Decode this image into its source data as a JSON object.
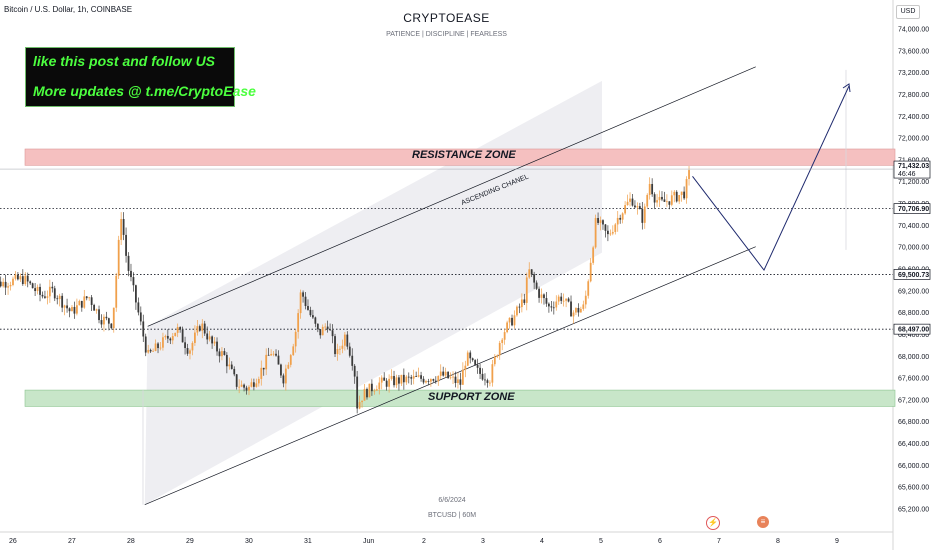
{
  "header": {
    "symbol": "Bitcoin / U.S. Dollar, 1h, COINBASE",
    "currency_button": "USD"
  },
  "watermark": {
    "title": "CRYPTOEASE",
    "subtitle": "PATIENCE  |  DISCIPLINE  |  FEARLESS"
  },
  "promo": {
    "line1": "like this post and follow US",
    "line2": "More updates @ t.me/CryptoEase",
    "text_color": "#4cff3f",
    "background": "#0a0a0a"
  },
  "footer": {
    "date": "6/6/2024",
    "ticker": "BTCUSD | 60M"
  },
  "icons": [
    "flash-icon",
    "flag-icon"
  ],
  "chart_data": {
    "type": "candlestick",
    "interval": "1h",
    "symbol": "BTCUSD",
    "title": "Bitcoin / U.S. Dollar, 1h, COINBASE",
    "x_axis": {
      "ticks": [
        "26",
        "27",
        "28",
        "29",
        "30",
        "31",
        "Jun",
        "2",
        "3",
        "4",
        "5",
        "6",
        "7",
        "8",
        "9"
      ],
      "unit": "days"
    },
    "y_axis": {
      "range": [
        65100,
        74250
      ],
      "ticks": [
        "65,200.00",
        "65,600.00",
        "66,000.00",
        "66,400.00",
        "66,800.00",
        "67,200.00",
        "67,600.00",
        "68,000.00",
        "68,400.00",
        "68,800.00",
        "69,200.00",
        "69,600.00",
        "70,000.00",
        "70,400.00",
        "70,800.00",
        "71,200.00",
        "71,600.00",
        "72,000.00",
        "72,400.00",
        "72,800.00",
        "73,200.00",
        "73,600.00",
        "74,000.00"
      ],
      "side": "right"
    },
    "colors": {
      "up": "#f0a04b",
      "down": "#3a3a3a",
      "axis_text": "#131722",
      "grid": "none"
    },
    "price_close_path": [
      [
        25.6,
        69300
      ],
      [
        26.2,
        69420
      ],
      [
        26.5,
        69100
      ],
      [
        26.7,
        69200
      ],
      [
        27.0,
        68800
      ],
      [
        27.3,
        69100
      ],
      [
        27.5,
        68700
      ],
      [
        27.7,
        68600
      ],
      [
        27.85,
        70600
      ],
      [
        27.95,
        69700
      ],
      [
        28.1,
        69000
      ],
      [
        28.3,
        68000
      ],
      [
        28.5,
        68200
      ],
      [
        28.8,
        68500
      ],
      [
        29.0,
        68100
      ],
      [
        29.2,
        68600
      ],
      [
        29.4,
        68200
      ],
      [
        29.6,
        68000
      ],
      [
        29.8,
        67500
      ],
      [
        30.0,
        67400
      ],
      [
        30.2,
        67700
      ],
      [
        30.4,
        68100
      ],
      [
        30.6,
        67600
      ],
      [
        30.8,
        68400
      ],
      [
        30.9,
        69200
      ],
      [
        31.0,
        68900
      ],
      [
        31.2,
        68400
      ],
      [
        31.35,
        68600
      ],
      [
        31.5,
        68000
      ],
      [
        31.65,
        68400
      ],
      [
        31.8,
        67800
      ],
      [
        31.85,
        67100
      ],
      [
        31.95,
        67300
      ],
      [
        32.2,
        67500
      ],
      [
        32.6,
        67560
      ],
      [
        33.0,
        67600
      ],
      [
        33.3,
        67650
      ],
      [
        33.6,
        67500
      ],
      [
        33.7,
        68000
      ],
      [
        33.9,
        67700
      ],
      [
        34.1,
        67600
      ],
      [
        34.3,
        68400
      ],
      [
        34.5,
        68700
      ],
      [
        34.7,
        69100
      ],
      [
        34.75,
        69600
      ],
      [
        34.9,
        69200
      ],
      [
        35.1,
        68900
      ],
      [
        35.3,
        69100
      ],
      [
        35.5,
        68800
      ],
      [
        35.7,
        68900
      ],
      [
        35.8,
        69700
      ],
      [
        35.9,
        70500
      ],
      [
        36.1,
        70200
      ],
      [
        36.3,
        70600
      ],
      [
        36.5,
        70900
      ],
      [
        36.7,
        70500
      ],
      [
        36.8,
        71200
      ],
      [
        36.9,
        70900
      ],
      [
        37.0,
        70800
      ],
      [
        37.2,
        70900
      ],
      [
        37.4,
        71000
      ],
      [
        37.5,
        71432
      ]
    ],
    "last_price": 71432.03,
    "last_price_countdown": "46:46",
    "horizontal_levels": [
      {
        "value": 70706.9,
        "label": "70,706.90",
        "style": "dotted"
      },
      {
        "value": 69500.73,
        "label": "69,500.73",
        "style": "dotted"
      },
      {
        "value": 68497.0,
        "label": "68,497.00",
        "style": "dotted"
      }
    ],
    "zones": [
      {
        "name": "RESISTANCE ZONE",
        "from": 71500,
        "to": 71800,
        "color": "#f5c0c0"
      },
      {
        "name": "SUPPORT ZONE",
        "from": 67080,
        "to": 67380,
        "color": "#c8e6c9"
      }
    ],
    "channel": {
      "label": "ASCENDING CHANEL",
      "upper": [
        [
          28.3,
          68550
        ],
        [
          36.0,
          73050
        ]
      ],
      "lower": [
        [
          28.25,
          65280
        ],
        [
          36.0,
          69900
        ]
      ],
      "fill": "#eeeef2"
    },
    "projection": [
      [
        37.5,
        71300
      ],
      [
        38.3,
        69580
      ],
      [
        39.2,
        72800
      ]
    ]
  }
}
